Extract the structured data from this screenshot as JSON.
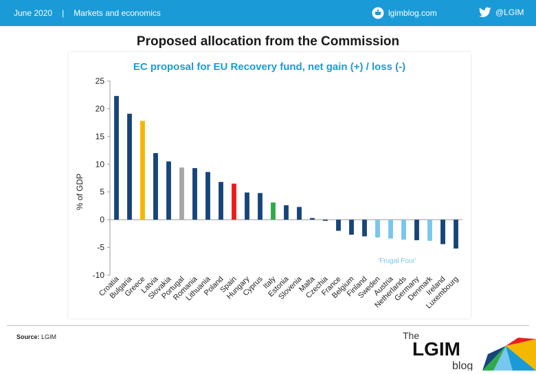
{
  "header": {
    "date": "June 2020",
    "separator": "|",
    "section": "Markets and economics",
    "site": "lgimblog.com",
    "twitter": "@LGIM"
  },
  "page_title": "Proposed allocation from the Commission",
  "footer": {
    "source_label": "Source:",
    "source_value": "LGIM"
  },
  "logo": {
    "the": "The",
    "name": "LGIM",
    "blog": "blog"
  },
  "colors": {
    "header_bg": "#1a9bd7",
    "dark_blue": "#17457a",
    "light_blue": "#79c6ee",
    "greece": "#f5b800",
    "portugal": "#a6a6a6",
    "spain": "#ee1c1c",
    "italy": "#2faa4a",
    "title_blue": "#1a9bd7"
  },
  "chart_data": {
    "type": "bar",
    "title": "EC proposal for EU Recovery fund, net gain (+) / loss (-)",
    "xlabel": "",
    "ylabel": "% of GDP",
    "ylim": [
      -10,
      25
    ],
    "yticks": [
      -10,
      -5,
      0,
      5,
      10,
      15,
      20,
      25
    ],
    "grid": false,
    "categories": [
      "Croatia",
      "Bulgaria",
      "Greece",
      "Latvia",
      "Slovakia",
      "Portugal",
      "Romania",
      "Lithuania",
      "Poland",
      "Spain",
      "Hungary",
      "Cyprus",
      "Italy",
      "Estonia",
      "Slovenia",
      "Malta",
      "Czechia",
      "France",
      "Belgium",
      "Finland",
      "Sweden",
      "Austria",
      "Netherlands",
      "Germany",
      "Denmark",
      "Ireland",
      "Luxembourg"
    ],
    "values": [
      22.3,
      19.1,
      17.8,
      12.0,
      10.5,
      9.4,
      9.3,
      8.6,
      6.8,
      6.5,
      4.9,
      4.8,
      3.1,
      2.6,
      2.3,
      0.3,
      -0.2,
      -2.0,
      -2.7,
      -3.0,
      -3.2,
      -3.4,
      -3.6,
      -3.7,
      -3.8,
      -4.4,
      -5.2
    ],
    "bar_colors": [
      "#17457a",
      "#17457a",
      "#f5b800",
      "#17457a",
      "#17457a",
      "#a6a6a6",
      "#17457a",
      "#17457a",
      "#17457a",
      "#ee1c1c",
      "#17457a",
      "#17457a",
      "#2faa4a",
      "#17457a",
      "#17457a",
      "#17457a",
      "#17457a",
      "#17457a",
      "#17457a",
      "#17457a",
      "#79c6ee",
      "#79c6ee",
      "#79c6ee",
      "#17457a",
      "#79c6ee",
      "#17457a",
      "#17457a"
    ],
    "annotations": [
      {
        "text": "'Frugal Four'",
        "color": "#79c6ee"
      }
    ]
  }
}
